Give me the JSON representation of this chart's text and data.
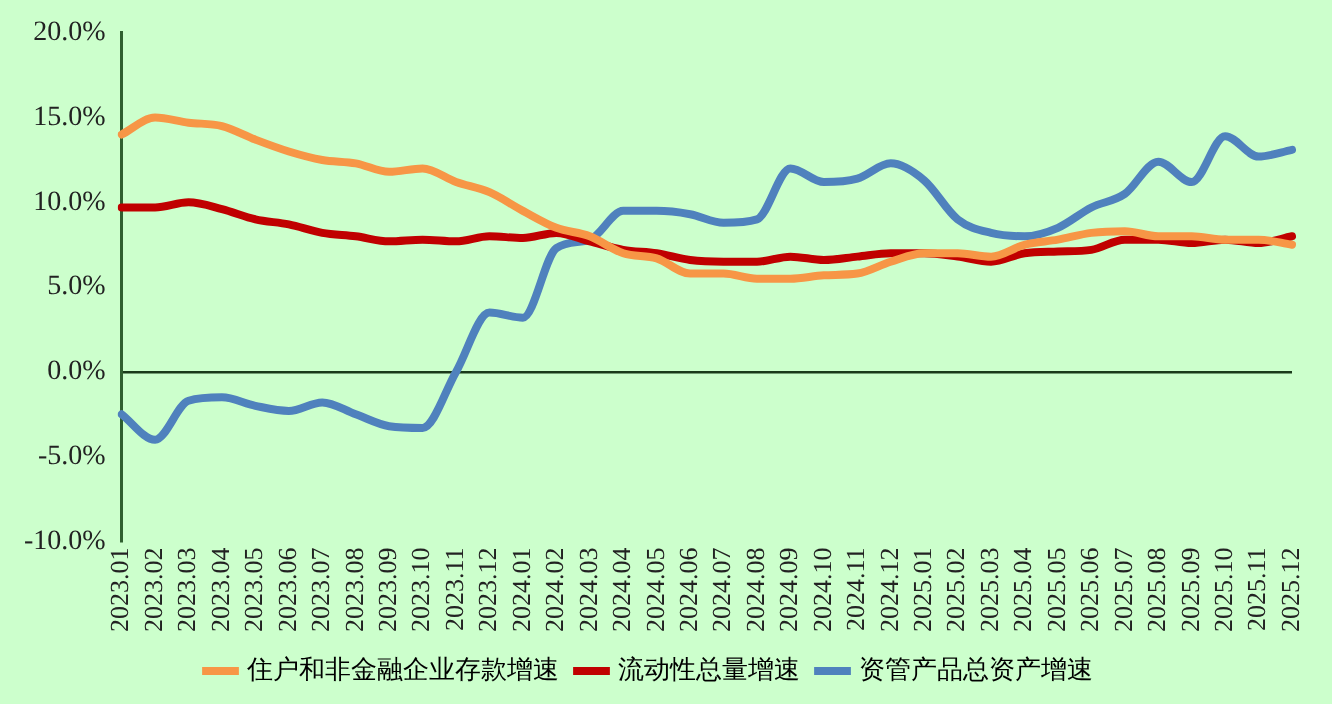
{
  "chart_data": {
    "type": "line",
    "categories": [
      "2023.01",
      "2023.02",
      "2023.03",
      "2023.04",
      "2023.05",
      "2023.06",
      "2023.07",
      "2023.08",
      "2023.09",
      "2023.10",
      "2023.11",
      "2023.12",
      "2024.01",
      "2024.02",
      "2024.03",
      "2024.04",
      "2024.05",
      "2024.06",
      "2024.07",
      "2024.08",
      "2024.09",
      "2024.10",
      "2024.11",
      "2024.12",
      "2025.01",
      "2025.02",
      "2025.03",
      "2025.04",
      "2025.05",
      "2025.06",
      "2025.07",
      "2025.08",
      "2025.09",
      "2025.10",
      "2025.11",
      "2025.12"
    ],
    "series": [
      {
        "name": "住户和非金融企业存款增速",
        "color": "#f79646",
        "values": [
          14.0,
          15.0,
          14.7,
          14.5,
          13.7,
          13.0,
          12.5,
          12.3,
          11.8,
          12.0,
          11.2,
          10.6,
          9.5,
          8.5,
          8.0,
          7.0,
          6.7,
          5.8,
          5.8,
          5.5,
          5.5,
          5.7,
          5.8,
          6.5,
          7.0,
          7.0,
          6.8,
          7.5,
          7.8,
          8.2,
          8.3,
          8.0,
          8.0,
          7.8,
          7.8,
          7.5
        ]
      },
      {
        "name": "流动性总量增速",
        "color": "#c00000",
        "values": [
          9.7,
          9.7,
          10.0,
          9.6,
          9.0,
          8.7,
          8.2,
          8.0,
          7.7,
          7.8,
          7.7,
          8.0,
          7.9,
          8.2,
          7.7,
          7.2,
          7.0,
          6.6,
          6.5,
          6.5,
          6.8,
          6.6,
          6.8,
          7.0,
          7.0,
          6.8,
          6.5,
          7.0,
          7.1,
          7.2,
          7.8,
          7.8,
          7.6,
          7.8,
          7.6,
          8.0
        ]
      },
      {
        "name": "资管产品总资产增速",
        "color": "#4f81bd",
        "values": [
          -2.5,
          -4.0,
          -1.7,
          -1.5,
          -2.0,
          -2.3,
          -1.8,
          -2.5,
          -3.2,
          -3.3,
          0.0,
          3.5,
          3.2,
          7.3,
          7.8,
          9.5,
          9.5,
          9.3,
          8.8,
          9.0,
          12.0,
          11.2,
          11.4,
          12.3,
          11.3,
          9.0,
          8.2,
          8.0,
          8.5,
          9.7,
          10.5,
          12.4,
          11.2,
          13.9,
          12.7,
          13.1
        ]
      }
    ],
    "ylim": [
      -10,
      20
    ],
    "yticks": [
      {
        "value": -10,
        "label": "-10.0%"
      },
      {
        "value": -5,
        "label": "-5.0%"
      },
      {
        "value": 0,
        "label": "0.0%"
      },
      {
        "value": 5,
        "label": "5.0%"
      },
      {
        "value": 10,
        "label": "10.0%"
      },
      {
        "value": 15,
        "label": "15.0%"
      },
      {
        "value": 20,
        "label": "20.0%"
      }
    ],
    "legend": "bottom",
    "marker": "none",
    "line_style": "solid"
  }
}
